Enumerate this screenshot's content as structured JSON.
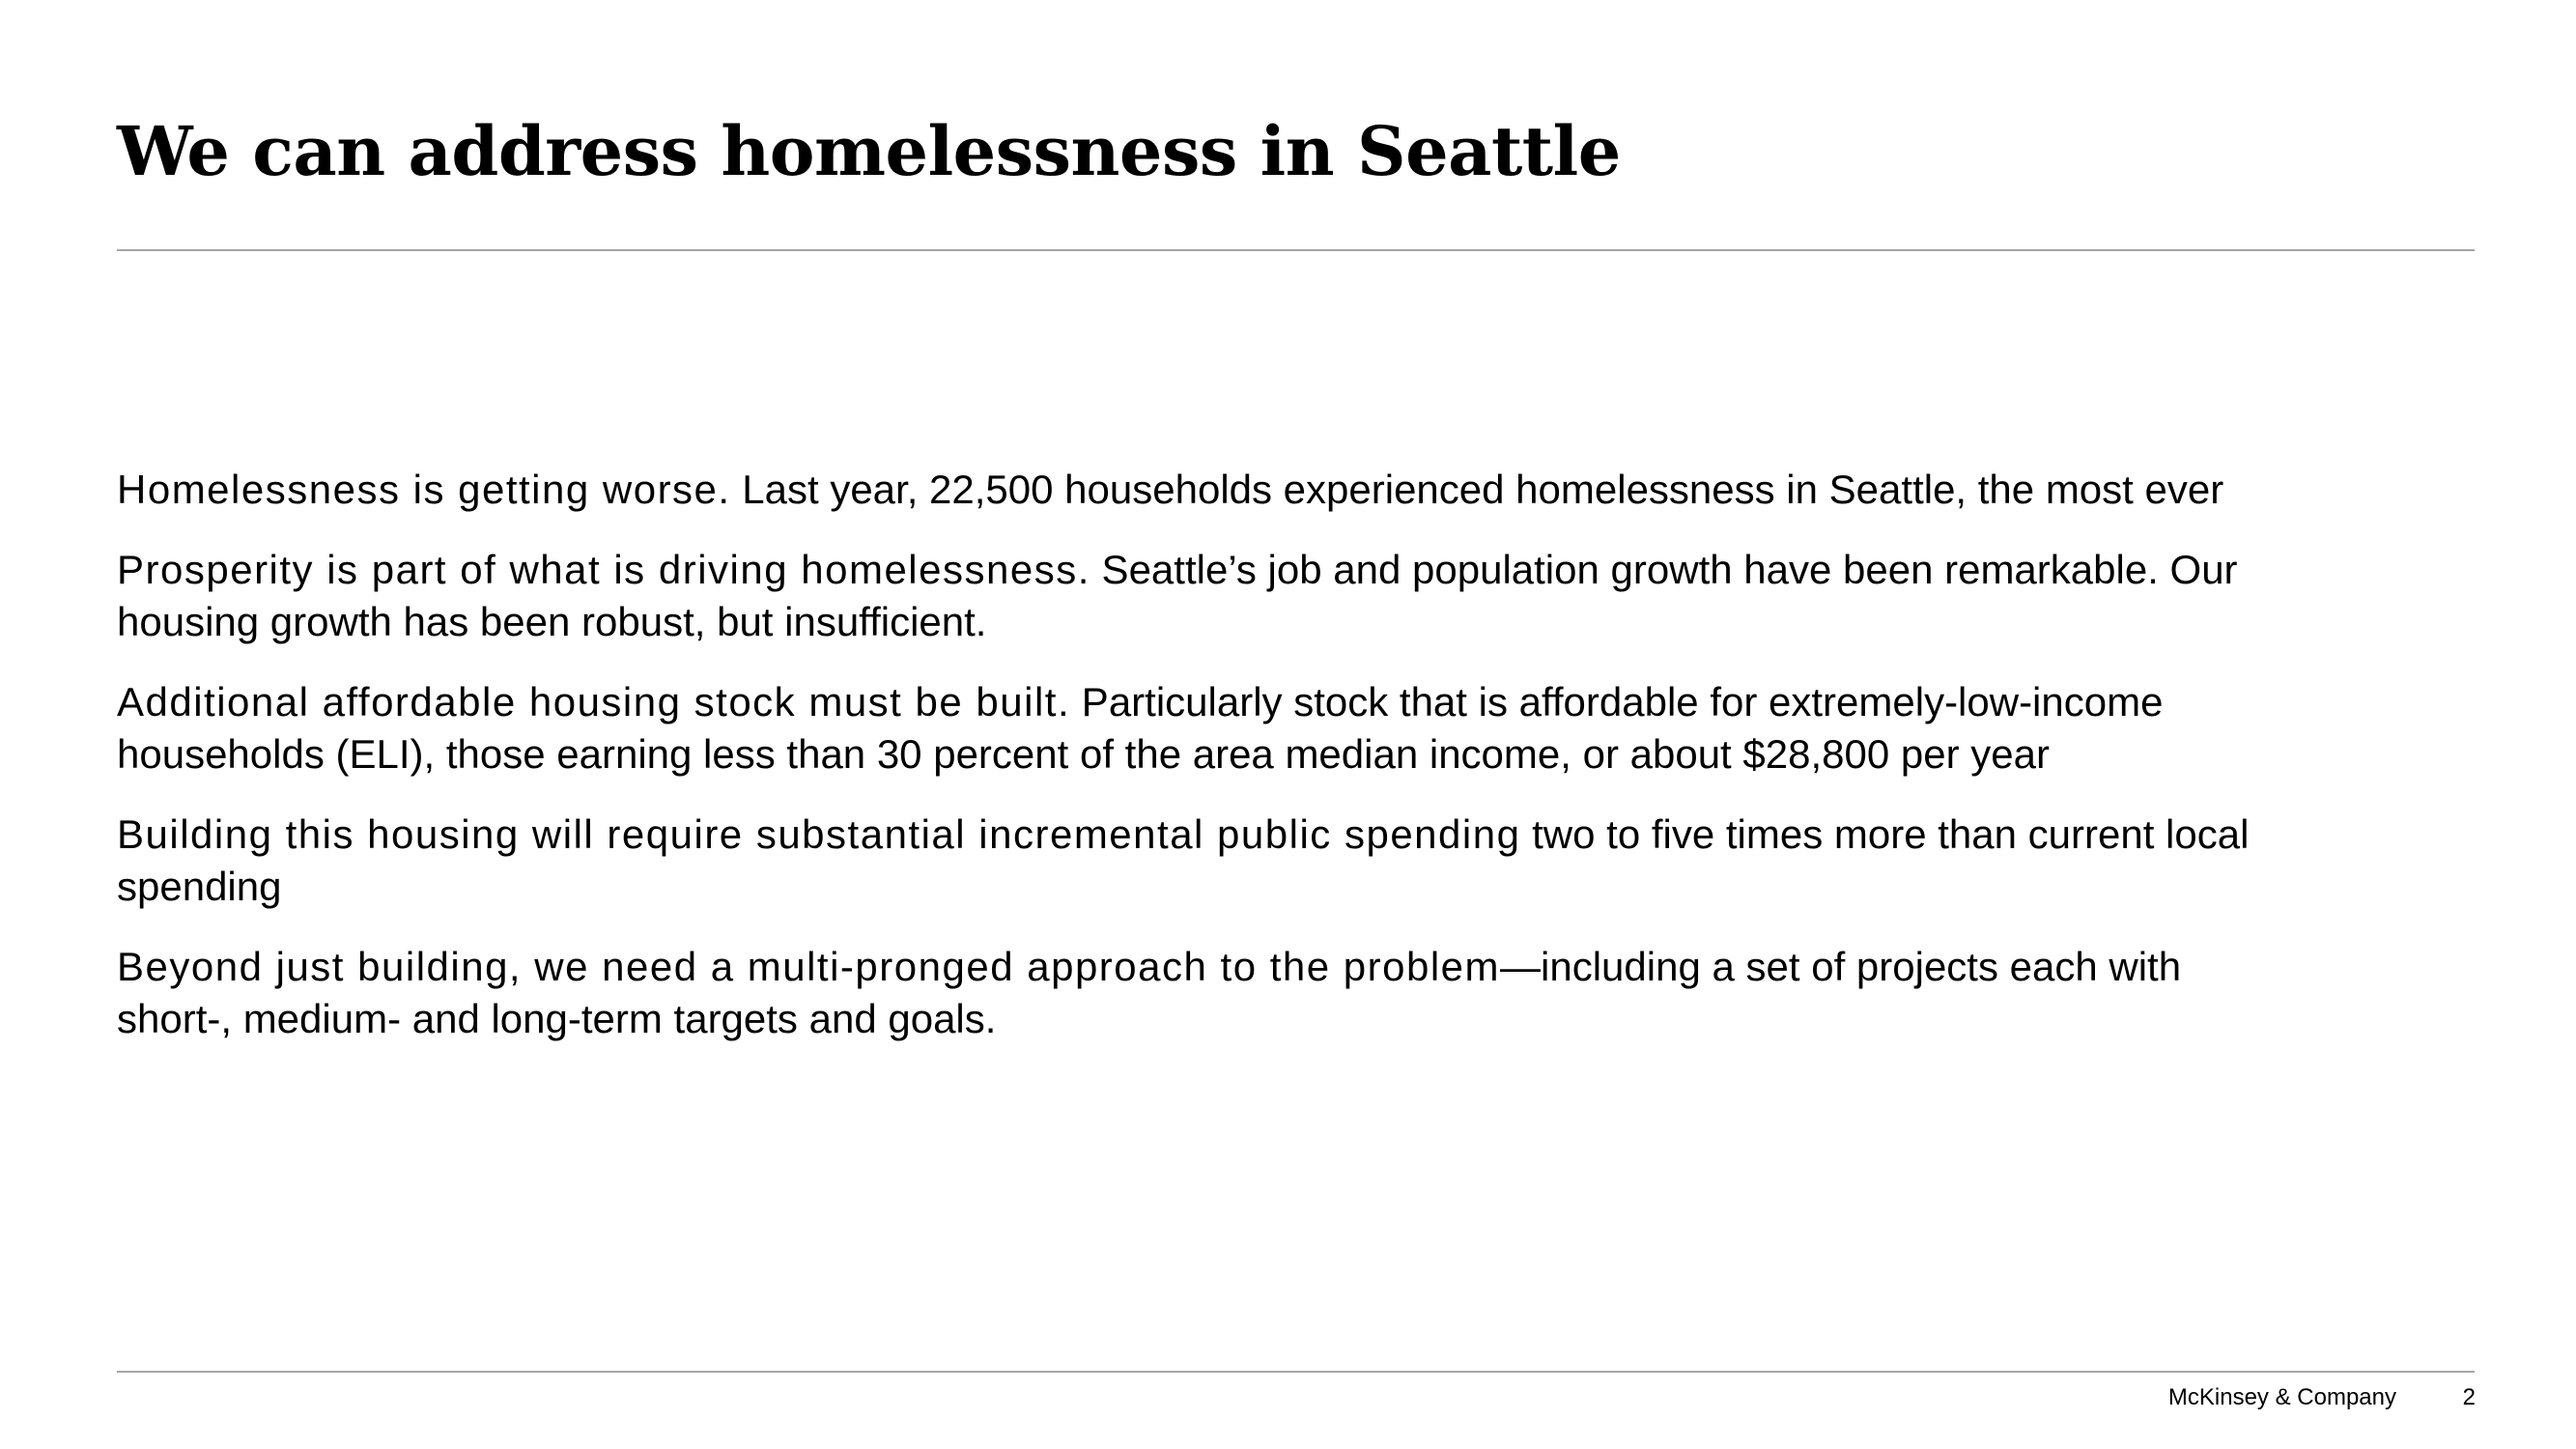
{
  "title": "We can address homelessness in Seattle",
  "paragraphs": [
    {
      "lead": "Homelessness is getting worse.",
      "body": " Last year, 22,500 households experienced homelessness in Seattle, the most ever"
    },
    {
      "lead": "Prosperity is part of what is driving homelessness.",
      "body": " Seattle’s job and population growth have been remarkable. Our housing growth has been robust, but insufficient."
    },
    {
      "lead": "Additional affordable housing stock must be built.",
      "body": " Particularly stock that is affordable for extremely-low-income households (ELI), those earning less than 30 percent of the area median income, or about $28,800 per year"
    },
    {
      "lead": "Building this housing will require substantial incremental public spending",
      "body": " two to five times more than current local spending"
    },
    {
      "lead": "Beyond just building, we need a multi-pronged approach to the problem",
      "body": "—including a set of projects each with short-, medium- and long-term targets and goals."
    }
  ],
  "footer": {
    "brand": "McKinsey & Company",
    "page_number": "2"
  }
}
